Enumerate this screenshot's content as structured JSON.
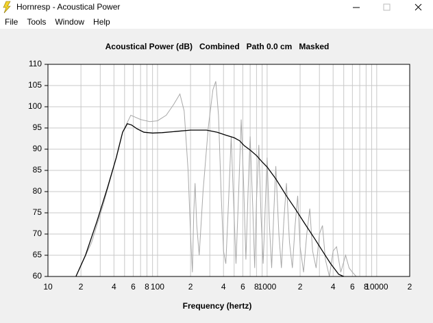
{
  "window": {
    "title": "Hornresp - Acoustical Power"
  },
  "menu": [
    "File",
    "Tools",
    "Window",
    "Help"
  ],
  "chart_data": {
    "type": "line",
    "title": "Acoustical Power (dB)   Combined   Path 0.0 cm   Masked",
    "x_label": "Frequency (hertz)",
    "log_x": true,
    "grid": true,
    "xlim": [
      10,
      20000
    ],
    "ylim": [
      60,
      110
    ],
    "yticks": [
      60,
      65,
      70,
      75,
      80,
      85,
      90,
      95,
      100,
      105,
      110
    ],
    "xticks": [
      10,
      {
        "value": 20,
        "label": "2"
      },
      {
        "value": 40,
        "label": "4"
      },
      {
        "value": 60,
        "label": "6"
      },
      {
        "value": 80,
        "label": "8"
      },
      100,
      {
        "value": 200,
        "label": "2"
      },
      {
        "value": 400,
        "label": "4"
      },
      {
        "value": 600,
        "label": "6"
      },
      {
        "value": 800,
        "label": "8"
      },
      1000,
      {
        "value": 2000,
        "label": "2"
      },
      {
        "value": 4000,
        "label": "4"
      },
      {
        "value": 6000,
        "label": "6"
      },
      {
        "value": 8000,
        "label": "8"
      },
      10000,
      {
        "value": 20000,
        "label": "2"
      }
    ],
    "x_minor_ticks": [
      30,
      50,
      70,
      90,
      300,
      500,
      700,
      900,
      3000,
      5000,
      7000,
      9000
    ],
    "series": [
      {
        "color": "#a8a8a8",
        "x": [
          18,
          25,
          32,
          40,
          48,
          57,
          70,
          85,
          100,
          120,
          140,
          160,
          175,
          190,
          200,
          208,
          214,
          220,
          228,
          240,
          260,
          290,
          320,
          340,
          360,
          380,
          400,
          420,
          445,
          470,
          490,
          520,
          550,
          580,
          610,
          640,
          670,
          700,
          740,
          770,
          800,
          840,
          880,
          920,
          960,
          1000,
          1050,
          1100,
          1150,
          1200,
          1280,
          1350,
          1420,
          1500,
          1600,
          1700,
          1800,
          1900,
          2000,
          2150,
          2300,
          2450,
          2600,
          2800,
          3000,
          3200,
          3400,
          3700,
          4000,
          4300,
          4700,
          5200,
          5600,
          6000,
          6500
        ],
        "values": [
          60,
          68,
          77,
          86,
          94,
          98,
          97,
          96.5,
          96.7,
          98,
          100.5,
          103,
          99,
          85,
          70,
          61,
          75,
          82,
          72,
          65,
          80,
          95,
          104,
          106,
          98,
          80,
          66,
          63,
          78,
          93,
          80,
          63,
          80,
          97,
          82,
          64,
          80,
          93,
          76,
          62,
          78,
          91,
          74,
          63,
          76,
          88,
          72,
          62,
          75,
          86,
          70,
          62,
          73,
          82,
          68,
          62,
          72,
          79,
          67,
          61,
          70,
          76,
          66,
          62,
          70,
          72,
          64,
          60,
          66,
          67,
          61,
          65,
          62,
          61,
          60
        ]
      },
      {
        "color": "#000000",
        "x": [
          18,
          22,
          28,
          35,
          42,
          48,
          53,
          58,
          65,
          75,
          90,
          110,
          150,
          200,
          280,
          350,
          420,
          500,
          560,
          620,
          700,
          800,
          900,
          1000,
          1200,
          1500,
          1800,
          2200,
          2700,
          3200,
          3800,
          4500,
          5000
        ],
        "values": [
          60,
          65,
          73,
          81,
          88,
          94,
          96,
          95.7,
          94.8,
          94,
          93.8,
          93.9,
          94.2,
          94.5,
          94.5,
          94,
          93.3,
          92.7,
          92,
          90.8,
          89.8,
          88.5,
          87,
          85.8,
          83,
          79,
          76,
          72.5,
          69,
          66,
          63,
          60.5,
          60
        ]
      }
    ]
  }
}
